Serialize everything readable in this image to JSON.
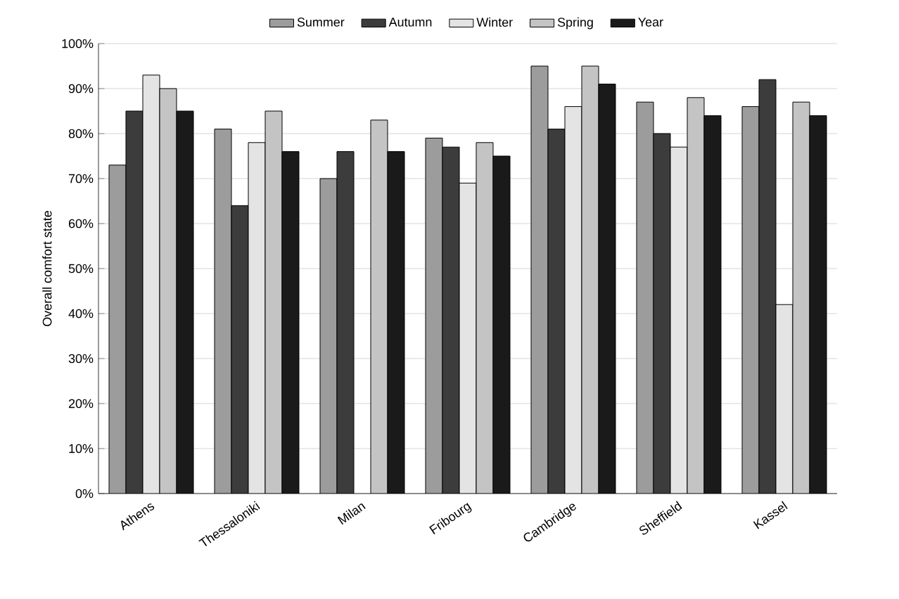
{
  "chart_data": {
    "type": "bar",
    "ylabel": "Overall comfort state",
    "categories": [
      "Athens",
      "Thessaloniki",
      "Milan",
      "Fribourg",
      "Cambridge",
      "Sheffield",
      "Kassel"
    ],
    "series": [
      {
        "name": "Summer",
        "color": "#9c9c9c",
        "values": [
          73,
          81,
          70,
          79,
          95,
          87,
          86
        ]
      },
      {
        "name": "Autumn",
        "color": "#3c3c3c",
        "values": [
          85,
          64,
          76,
          77,
          81,
          80,
          92
        ]
      },
      {
        "name": "Winter",
        "color": "#e4e4e4",
        "values": [
          93,
          78,
          null,
          69,
          86,
          77,
          42
        ]
      },
      {
        "name": "Spring",
        "color": "#c4c4c4",
        "values": [
          90,
          85,
          83,
          78,
          95,
          88,
          87
        ]
      },
      {
        "name": "Year",
        "color": "#1a1a1a",
        "values": [
          85,
          76,
          76,
          75,
          91,
          84,
          84
        ]
      }
    ],
    "ylim": [
      0,
      100
    ],
    "yticks": [
      {
        "value": 0,
        "label": "0%"
      },
      {
        "value": 10,
        "label": "10%"
      },
      {
        "value": 20,
        "label": "20%"
      },
      {
        "value": 30,
        "label": "30%"
      },
      {
        "value": 40,
        "label": "40%"
      },
      {
        "value": 50,
        "label": "50%"
      },
      {
        "value": 60,
        "label": "60%"
      },
      {
        "value": 70,
        "label": "70%"
      },
      {
        "value": 80,
        "label": "80%"
      },
      {
        "value": 90,
        "label": "90%"
      },
      {
        "value": 100,
        "label": "100%"
      }
    ],
    "grid": "y",
    "legend": "top"
  }
}
